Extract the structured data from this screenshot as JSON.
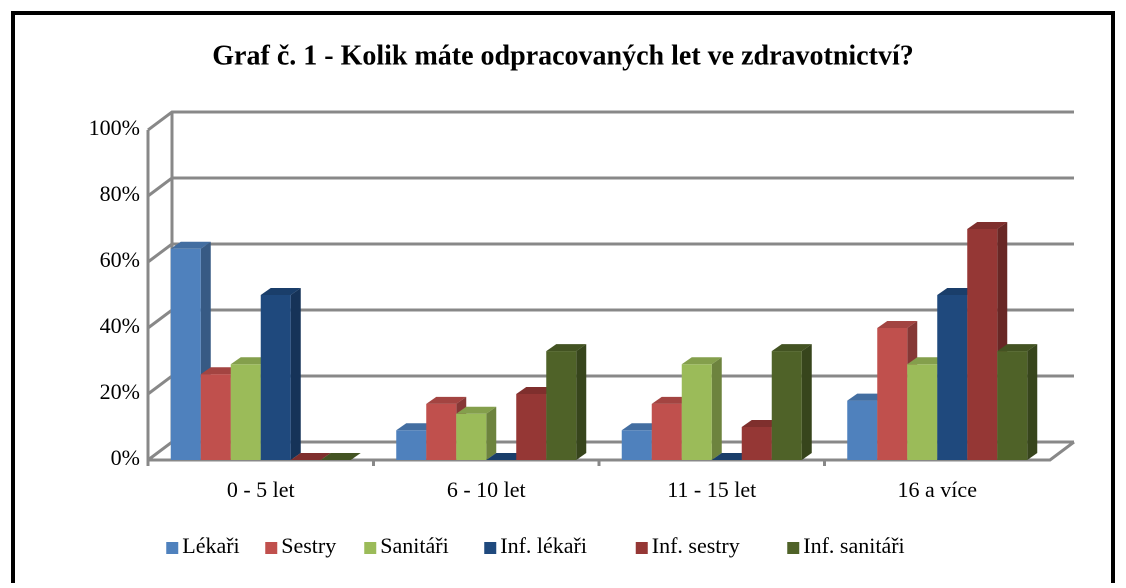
{
  "chart_data": {
    "type": "bar3d",
    "title": "Graf č. 1 - Kolik máte odpracovaných let ve zdravotnictví?",
    "categories": [
      "0 - 5 let",
      "6 - 10 let",
      "11 - 15 let",
      "16 a více"
    ],
    "series": [
      {
        "name": "Lékaři",
        "color": "#4f81bd",
        "values": [
          64,
          9,
          9,
          18
        ]
      },
      {
        "name": "Sestry",
        "color": "#c0504d",
        "values": [
          26,
          17,
          17,
          40
        ]
      },
      {
        "name": "Sanitáři",
        "color": "#9bbb59",
        "values": [
          29,
          14,
          29,
          29
        ]
      },
      {
        "name": "Inf. lékaři",
        "color": "#1f497d",
        "values": [
          50,
          0,
          0,
          50
        ]
      },
      {
        "name": "Inf. sestry",
        "color": "#953735",
        "values": [
          0,
          20,
          10,
          70
        ]
      },
      {
        "name": "Inf. sanitáři",
        "color": "#4f6228",
        "values": [
          0,
          33,
          33,
          33
        ]
      }
    ],
    "ylim": [
      0,
      100
    ],
    "yticks": [
      {
        "value": 0,
        "label": "0%"
      },
      {
        "value": 20,
        "label": "20%"
      },
      {
        "value": 40,
        "label": "40%"
      },
      {
        "value": 60,
        "label": "60%"
      },
      {
        "value": 80,
        "label": "80%"
      },
      {
        "value": 100,
        "label": "100%"
      }
    ],
    "grid": true,
    "legend": "bottom"
  }
}
